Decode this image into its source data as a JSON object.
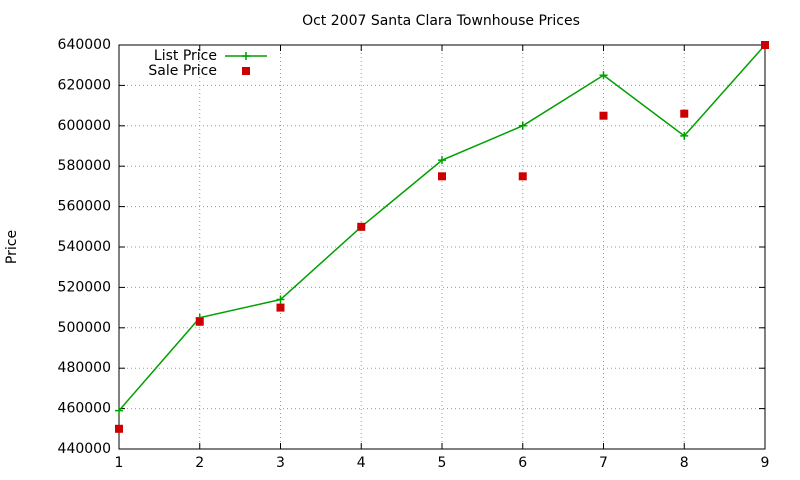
{
  "chart_data": {
    "type": "line",
    "title": "Oct 2007 Santa Clara Townhouse Prices",
    "y_label": "Price",
    "x": [
      1,
      2,
      3,
      4,
      5,
      6,
      7,
      8,
      9
    ],
    "series": [
      {
        "name": "List Price",
        "color": "#00a000",
        "line": true,
        "marker": "plus",
        "values": [
          459000,
          505000,
          514000,
          550000,
          583000,
          600000,
          625000,
          595000,
          640000
        ]
      },
      {
        "name": "Sale Price",
        "color": "#cc0000",
        "line": false,
        "marker": "square",
        "values": [
          450000,
          503000,
          510000,
          550000,
          575000,
          575000,
          605000,
          606000,
          640000
        ]
      }
    ],
    "xlim": [
      1,
      9
    ],
    "xticks": [
      1,
      2,
      3,
      4,
      5,
      6,
      7,
      8,
      9
    ],
    "ylim": [
      440000,
      640000
    ],
    "yticks": [
      440000,
      460000,
      480000,
      500000,
      520000,
      540000,
      560000,
      580000,
      600000,
      620000,
      640000
    ],
    "grid": true,
    "legend": "top-left"
  }
}
